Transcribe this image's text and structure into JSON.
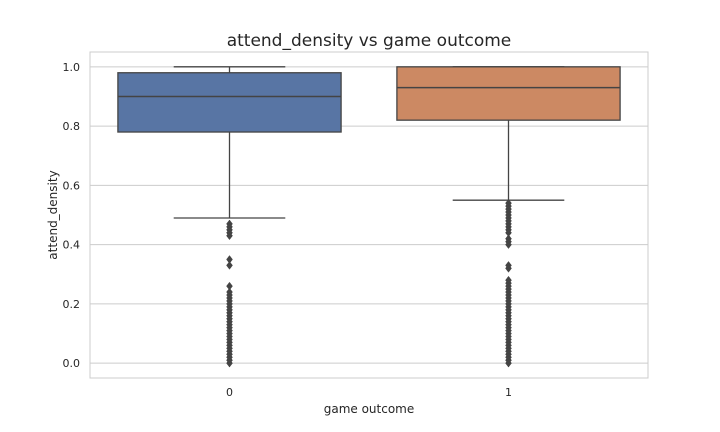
{
  "chart_data": {
    "type": "box",
    "title": "attend_density vs game outcome",
    "xlabel": "game outcome",
    "ylabel": "attend_density",
    "categories": [
      "0",
      "1"
    ],
    "ylim": [
      -0.05,
      1.05
    ],
    "yticks": [
      "0.0",
      "0.2",
      "0.4",
      "0.6",
      "0.8",
      "1.0"
    ],
    "grid": true,
    "boxes": [
      {
        "category": "0",
        "color": "#5875a4",
        "min": 0.49,
        "q1": 0.78,
        "median": 0.9,
        "q3": 0.98,
        "max": 1.0,
        "outliers": [
          0.47,
          0.46,
          0.45,
          0.44,
          0.43,
          0.35,
          0.33,
          0.26,
          0.24,
          0.23,
          0.22,
          0.21,
          0.2,
          0.19,
          0.18,
          0.17,
          0.16,
          0.15,
          0.14,
          0.13,
          0.12,
          0.11,
          0.1,
          0.09,
          0.08,
          0.07,
          0.06,
          0.05,
          0.04,
          0.03,
          0.02,
          0.01,
          0.0
        ]
      },
      {
        "category": "1",
        "color": "#cc8963",
        "min": 0.55,
        "q1": 0.82,
        "median": 0.93,
        "q3": 1.0,
        "max": 1.0,
        "outliers": [
          0.54,
          0.53,
          0.52,
          0.51,
          0.5,
          0.49,
          0.48,
          0.47,
          0.46,
          0.45,
          0.44,
          0.42,
          0.41,
          0.4,
          0.33,
          0.32,
          0.28,
          0.27,
          0.26,
          0.25,
          0.24,
          0.23,
          0.22,
          0.21,
          0.2,
          0.19,
          0.18,
          0.17,
          0.16,
          0.15,
          0.14,
          0.13,
          0.12,
          0.11,
          0.1,
          0.09,
          0.08,
          0.07,
          0.06,
          0.05,
          0.04,
          0.03,
          0.02,
          0.01,
          0.0
        ]
      }
    ]
  }
}
